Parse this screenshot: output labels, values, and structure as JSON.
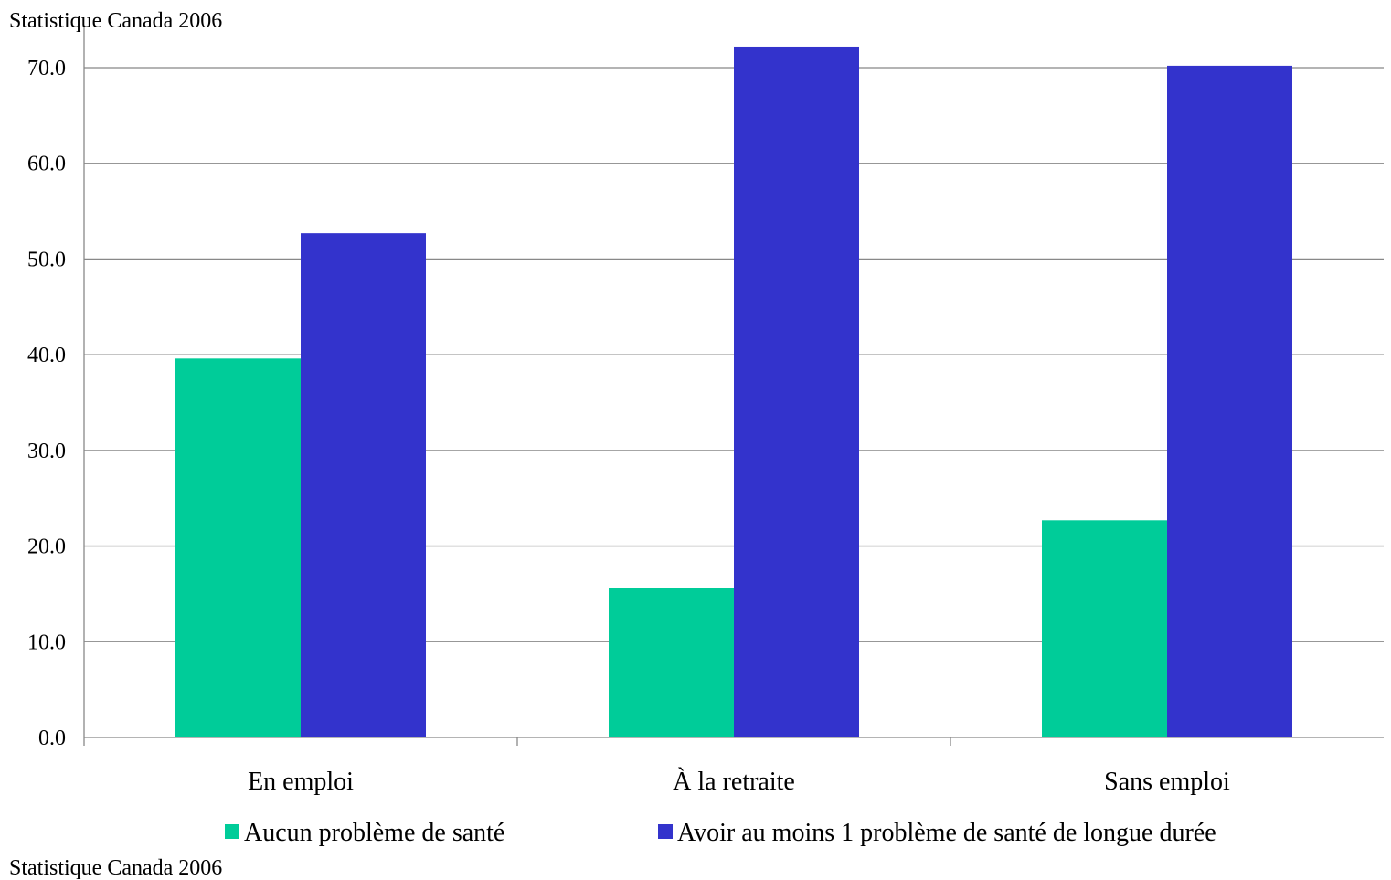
{
  "header_text": "Statistique Canada  2006",
  "footer_text": "Statistique Canada 2006",
  "colors": {
    "gridline": "#888888",
    "axis": "#888888"
  },
  "chart_data": {
    "type": "bar",
    "title": "",
    "xlabel": "",
    "ylabel": "",
    "categories": [
      "En emploi",
      "À la retraite",
      "Sans emploi"
    ],
    "series": [
      {
        "name": "Aucun problème de santé",
        "values": [
          39.6,
          15.6,
          22.7
        ],
        "color": "#00CC99"
      },
      {
        "name": "Avoir au moins 1 problème de santé de longue durée",
        "values": [
          52.7,
          72.2,
          70.2
        ],
        "color": "#3333CC"
      }
    ],
    "ylim": [
      0,
      70
    ],
    "yticks": [
      "0.0",
      "10.0",
      "20.0",
      "30.0",
      "40.0",
      "50.0",
      "60.0",
      "70.0"
    ],
    "grid": true,
    "legend": "bottom"
  }
}
